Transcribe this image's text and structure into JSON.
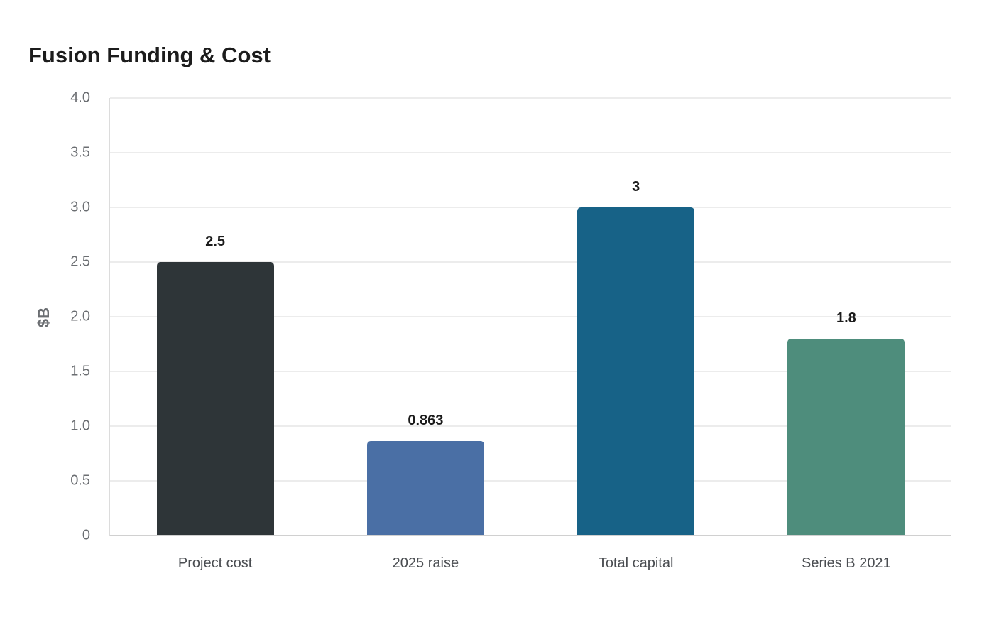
{
  "title": "Fusion Funding & Cost",
  "chart_data": {
    "type": "bar",
    "title": "Fusion Funding & Cost",
    "xlabel": "",
    "ylabel": "$B",
    "ylim": [
      0,
      4.0
    ],
    "yticks": [
      "0",
      "0.5",
      "1.0",
      "1.5",
      "2.0",
      "2.5",
      "3.0",
      "3.5",
      "4.0"
    ],
    "grid": true,
    "categories": [
      "Project cost",
      "2025 raise",
      "Total capital",
      "Series B 2021"
    ],
    "values": [
      2.5,
      0.863,
      3,
      1.8
    ],
    "value_labels": [
      "2.5",
      "0.863",
      "3",
      "1.8"
    ],
    "colors": [
      "#2e3538",
      "#4a6fa5",
      "#176287",
      "#4e8d7c"
    ]
  }
}
